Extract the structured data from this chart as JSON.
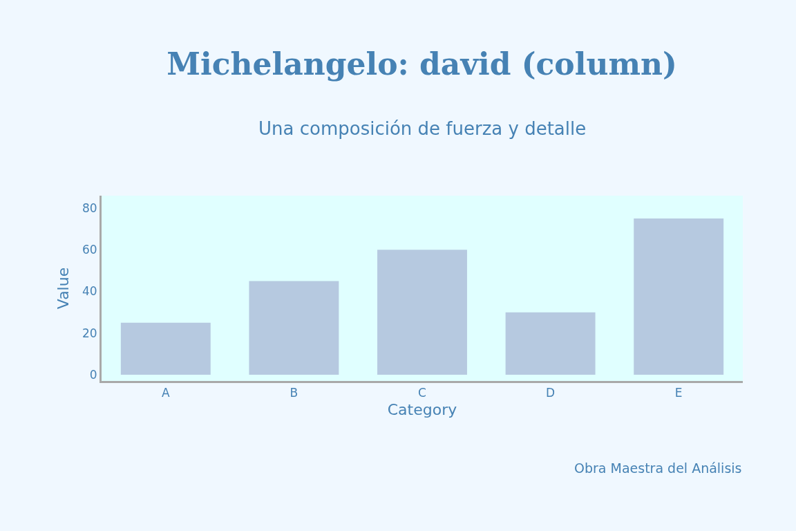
{
  "chart_data": {
    "type": "bar",
    "title": "Michelangelo: david (column)",
    "subtitle": "Una composición de fuerza y detalle",
    "xlabel": "Category",
    "ylabel": "Value",
    "categories": [
      "A",
      "B",
      "C",
      "D",
      "E"
    ],
    "values": [
      25,
      45,
      60,
      30,
      75
    ],
    "color": "#b6c9e0",
    "ylim": [
      -3,
      86
    ],
    "yticks": [
      0,
      20,
      40,
      60,
      80
    ],
    "grid": false,
    "legend": false,
    "annotations": [
      "Obra Maestra del Análisis"
    ]
  }
}
